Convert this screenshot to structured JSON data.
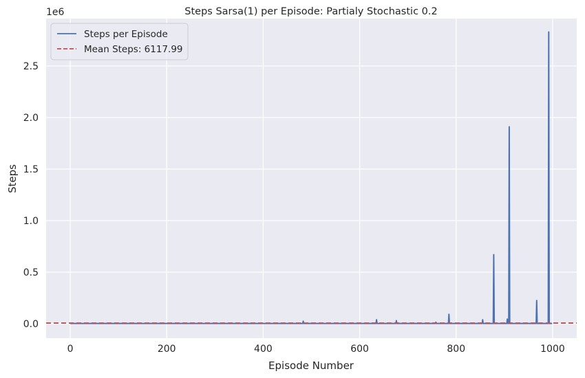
{
  "chart_data": {
    "type": "line",
    "title": "Steps Sarsa(1) per Episode: Partialy Stochastic 0.2",
    "xlabel": "Episode Number",
    "ylabel": "Steps",
    "y_offset_label": "1e6",
    "xlim": [
      -50,
      1050
    ],
    "ylim": [
      -140000,
      2960000
    ],
    "xticks": [
      0,
      200,
      400,
      600,
      800,
      1000
    ],
    "xtick_labels": [
      "0",
      "200",
      "400",
      "600",
      "800",
      "1000"
    ],
    "yticks": [
      0,
      500000,
      1000000,
      1500000,
      2000000,
      2500000
    ],
    "ytick_labels": [
      "0.0",
      "0.5",
      "1.0",
      "1.5",
      "2.0",
      "2.5"
    ],
    "grid": true,
    "legend_position": "upper-left",
    "baseline": 3000,
    "spikes": [
      {
        "x": 483,
        "y": 25000
      },
      {
        "x": 635,
        "y": 38000
      },
      {
        "x": 676,
        "y": 30000
      },
      {
        "x": 758,
        "y": 15000
      },
      {
        "x": 785,
        "y": 92000
      },
      {
        "x": 855,
        "y": 38000
      },
      {
        "x": 878,
        "y": 670000
      },
      {
        "x": 906,
        "y": 45000
      },
      {
        "x": 910,
        "y": 1910000
      },
      {
        "x": 967,
        "y": 225000
      },
      {
        "x": 992,
        "y": 2830000
      }
    ],
    "mean_value": 6117.99,
    "series": [
      {
        "name": "Steps per Episode",
        "color": "#4c72b0",
        "style": "solid"
      },
      {
        "name": "Mean Steps: 6117.99",
        "color": "#c44e52",
        "style": "dashed"
      }
    ],
    "x_range_data": [
      0,
      999
    ]
  },
  "colors": {
    "plot_background": "#eaeaf2",
    "grid": "#ffffff",
    "series_line": "#4c72b0",
    "mean_line": "#c44e52"
  }
}
